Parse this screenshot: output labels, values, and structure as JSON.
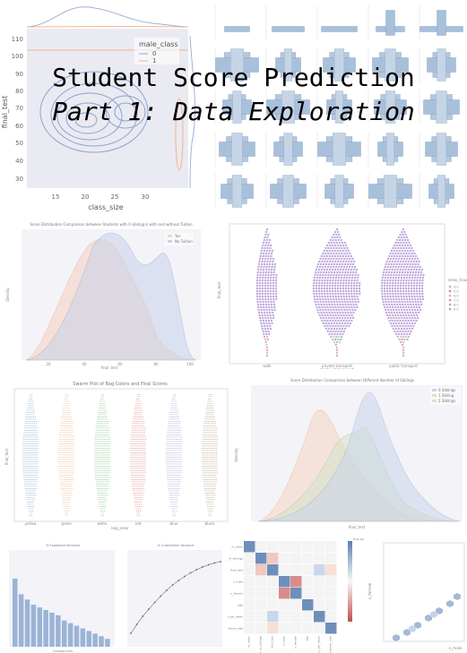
{
  "cover": {
    "title_line1": "Student Score Prediction",
    "title_line2": "Part 1: Data Exploration"
  },
  "panels": {
    "joint_kde": {
      "ylabel": "final_test",
      "xlabel": "class_size",
      "legend_title": "male_class",
      "legend_entries": [
        "0",
        "1"
      ],
      "y_ticks": [
        "110",
        "100",
        "90",
        "80",
        "70",
        "60",
        "50",
        "40",
        "30"
      ],
      "x_ticks": [
        "15",
        "20",
        "25",
        "30"
      ],
      "colors": {
        "series_0": "#4c72b0",
        "series_1": "#dd8452"
      }
    },
    "kde_tuition": {
      "title": "Score Distribution Comparison between Students with 0 sibling(s) with and without Tuition",
      "legend_entries": [
        "Yes",
        "No Tuition"
      ],
      "xlabel": "final_test",
      "ylabel": "Density",
      "x_ticks": [
        "20",
        "40",
        "60",
        "80",
        "100"
      ]
    },
    "swarm_transport": {
      "xlabel": "mode_of_transport",
      "ylabel": "final_test",
      "categories": [
        "walk",
        "private transport",
        "public transport"
      ],
      "legend_title": "sleep_hours",
      "legend_entries": [
        "4.0",
        "5.0",
        "6.0",
        "7.0",
        "8.0",
        "9.0"
      ]
    },
    "swarm_bag": {
      "title": "Swarm Plot of Bag Colors and Final Scores",
      "xlabel": "bag_color",
      "ylabel": "final_test",
      "categories": [
        "yellow",
        "green",
        "white",
        "red",
        "blue",
        "black"
      ]
    },
    "kde_siblings": {
      "title": "Score Distribution Comparison between Different Number of Siblings",
      "legend_entries": [
        "0 Siblings",
        "1 Sibling",
        "2 Siblings"
      ],
      "xlabel": "final_test",
      "ylabel": "Density"
    },
    "pca_bar": {
      "title": "% Explained Variance",
      "xlabel": "Components"
    },
    "pca_line": {
      "title": "% Cumulative Variance"
    },
    "heatmap": {
      "labels": [
        "id_index",
        "number_of_siblings",
        "final_test",
        "n_male",
        "n_female",
        "age",
        "hours_per_week",
        "attendance_rate"
      ],
      "colorbar_title": "final_test"
    },
    "hexbin": {
      "ylabel": "n_female",
      "xlabel": "n_male"
    }
  },
  "chart_data": [
    {
      "type": "bar",
      "title": "% Explained Variance",
      "xlabel": "Components",
      "categories": [
        "1",
        "2",
        "3",
        "4",
        "5",
        "6",
        "7",
        "8",
        "9",
        "10",
        "11",
        "12",
        "13",
        "14",
        "15",
        "16"
      ],
      "values": [
        0.13,
        0.1,
        0.09,
        0.08,
        0.075,
        0.07,
        0.065,
        0.06,
        0.05,
        0.045,
        0.04,
        0.035,
        0.03,
        0.025,
        0.02,
        0.015
      ]
    },
    {
      "type": "line",
      "title": "% Cumulative Variance",
      "x": [
        1,
        2,
        3,
        4,
        5,
        6,
        7,
        8,
        9,
        10,
        11,
        12,
        13,
        14,
        15,
        16
      ],
      "values": [
        0.13,
        0.23,
        0.32,
        0.4,
        0.475,
        0.545,
        0.61,
        0.67,
        0.72,
        0.765,
        0.805,
        0.84,
        0.87,
        0.895,
        0.915,
        0.93
      ]
    }
  ]
}
